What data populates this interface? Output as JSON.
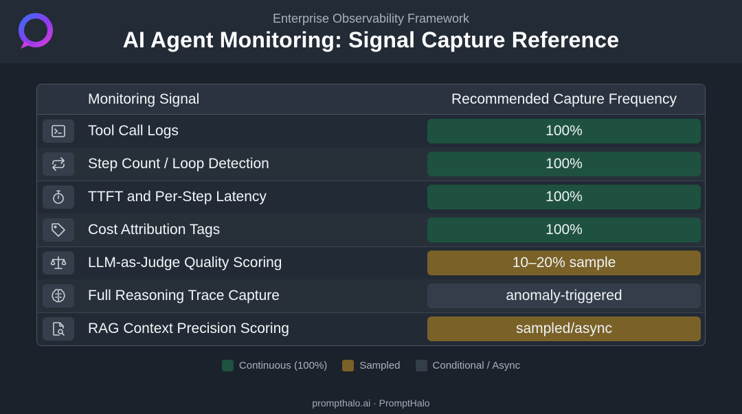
{
  "header": {
    "subtitle": "Enterprise Observability Framework",
    "title": "AI Agent Monitoring: Signal Capture Reference",
    "logo_icon": "ring-logo-icon"
  },
  "table": {
    "columns": {
      "signal": "Monitoring Signal",
      "frequency": "Recommended Capture Frequency"
    },
    "rows": [
      {
        "icon": "terminal-icon",
        "signal": "Tool Call Logs",
        "frequency": "100%",
        "category": "continuous"
      },
      {
        "icon": "loop-arrows-icon",
        "signal": "Step Count / Loop Detection",
        "frequency": "100%",
        "category": "continuous"
      },
      {
        "icon": "stopwatch-icon",
        "signal": "TTFT and Per-Step Latency",
        "frequency": "100%",
        "category": "continuous"
      },
      {
        "icon": "tag-icon",
        "signal": "Cost Attribution Tags",
        "frequency": "100%",
        "category": "continuous"
      },
      {
        "icon": "scales-icon",
        "signal": "LLM-as-Judge Quality Scoring",
        "frequency": "10–20% sample",
        "category": "sampled"
      },
      {
        "icon": "brain-icon",
        "signal": "Full Reasoning Trace Capture",
        "frequency": "anomaly-triggered",
        "category": "conditional"
      },
      {
        "icon": "document-search-icon",
        "signal": "RAG Context Precision Scoring",
        "frequency": "sampled/async",
        "category": "sampled"
      }
    ]
  },
  "legend": {
    "continuous": "Continuous (100%)",
    "sampled": "Sampled",
    "conditional": "Conditional / Async"
  },
  "colors": {
    "continuous": "#1e5140",
    "sampled": "#7a6127",
    "conditional": "#343e4b",
    "background": "#1b222c"
  },
  "footer": "prompthalo.ai · PromptHalo"
}
